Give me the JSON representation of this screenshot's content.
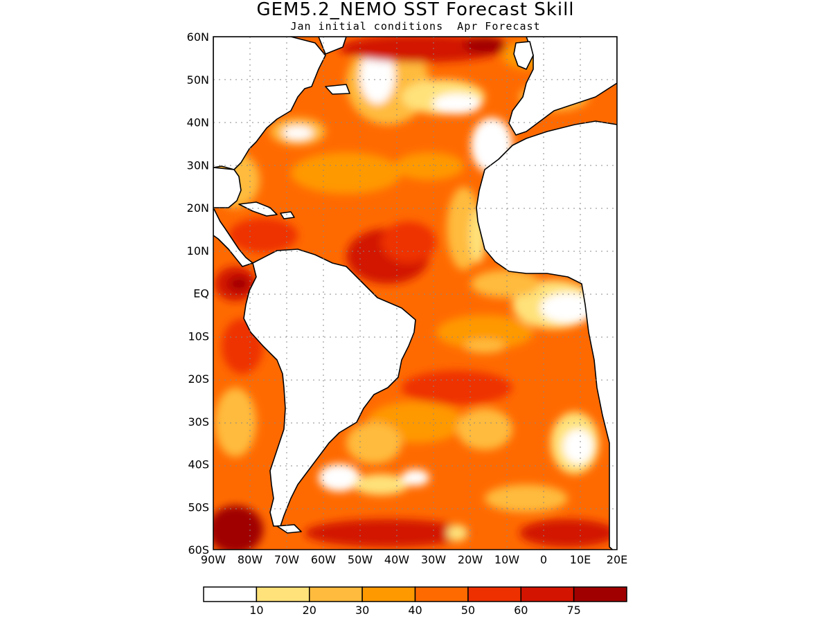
{
  "title": "GEM5.2_NEMO SST Forecast Skill",
  "subtitle": "Jan initial conditions  Apr Forecast",
  "map": {
    "lat_range": [
      -60,
      60
    ],
    "lon_range": [
      -90,
      20
    ],
    "grid": "dotted",
    "lat_ticks": [
      "60N",
      "50N",
      "40N",
      "30N",
      "20N",
      "10N",
      "EQ",
      "10S",
      "20S",
      "30S",
      "40S",
      "50S",
      "60S"
    ],
    "lon_ticks": [
      "90W",
      "80W",
      "70W",
      "60W",
      "50W",
      "40W",
      "30W",
      "20W",
      "10W",
      "0",
      "10E",
      "20E"
    ]
  },
  "colorbar": {
    "thresholds": [
      "10",
      "20",
      "30",
      "40",
      "50",
      "60",
      "75"
    ],
    "colors": [
      "#ffffff",
      "#ffe27a",
      "#ffbb3d",
      "#ff9900",
      "#ff6a00",
      "#ee3000",
      "#d21400",
      "#a00000"
    ]
  }
}
